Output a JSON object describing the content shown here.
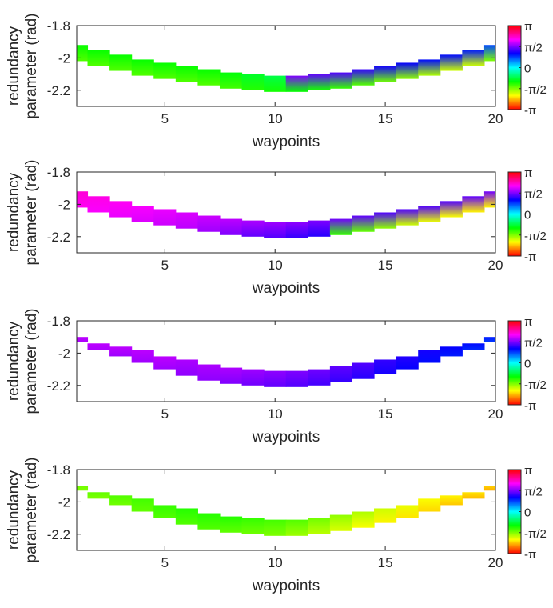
{
  "chart_data": [
    {
      "type": "heatmap",
      "title": "",
      "xlabel": "waypoints",
      "ylabel": [
        "redundancy",
        "parameter (rad)"
      ],
      "xlim": [
        1,
        20
      ],
      "ylim": [
        -2.3,
        -1.8
      ],
      "xticks": [
        5,
        10,
        15,
        20
      ],
      "xtick_labels": [
        "5",
        "10",
        "15",
        "20"
      ],
      "yticks": [
        -1.8,
        -2,
        -2.2
      ],
      "ytick_labels": [
        "-1.8",
        "-2",
        "-2.2"
      ],
      "colorbar": {
        "colormap": "hsv",
        "range": [
          "-π",
          "π"
        ],
        "tick_labels": [
          "π",
          "π/2",
          "0",
          "-π/2",
          "-π"
        ]
      },
      "bands": [
        {
          "waypoint": 1,
          "ymin": -2.02,
          "ymax": -1.92,
          "hue_start": 0.28,
          "hue_end": 0.33
        },
        {
          "waypoint": 2,
          "ymin": -2.05,
          "ymax": -1.95,
          "hue_start": 0.28,
          "hue_end": 0.33
        },
        {
          "waypoint": 3,
          "ymin": -2.08,
          "ymax": -1.98,
          "hue_start": 0.28,
          "hue_end": 0.33
        },
        {
          "waypoint": 4,
          "ymin": -2.11,
          "ymax": -2.01,
          "hue_start": 0.28,
          "hue_end": 0.33
        },
        {
          "waypoint": 5,
          "ymin": -2.13,
          "ymax": -2.03,
          "hue_start": 0.28,
          "hue_end": 0.33
        },
        {
          "waypoint": 6,
          "ymin": -2.15,
          "ymax": -2.05,
          "hue_start": 0.28,
          "hue_end": 0.33
        },
        {
          "waypoint": 7,
          "ymin": -2.17,
          "ymax": -2.07,
          "hue_start": 0.28,
          "hue_end": 0.33
        },
        {
          "waypoint": 8,
          "ymin": -2.19,
          "ymax": -2.09,
          "hue_start": 0.29,
          "hue_end": 0.34
        },
        {
          "waypoint": 9,
          "ymin": -2.2,
          "ymax": -2.1,
          "hue_start": 0.31,
          "hue_end": 0.36
        },
        {
          "waypoint": 10,
          "ymin": -2.21,
          "ymax": -2.11,
          "hue_start": 0.32,
          "hue_end": 0.38
        },
        {
          "waypoint": 11,
          "ymin": -2.21,
          "ymax": -2.11,
          "hue_start": 0.33,
          "hue_end": 0.75
        },
        {
          "waypoint": 12,
          "ymin": -2.2,
          "ymax": -2.1,
          "hue_start": 0.32,
          "hue_end": 0.73
        },
        {
          "waypoint": 13,
          "ymin": -2.19,
          "ymax": -2.09,
          "hue_start": 0.3,
          "hue_end": 0.72
        },
        {
          "waypoint": 14,
          "ymin": -2.17,
          "ymax": -2.07,
          "hue_start": 0.28,
          "hue_end": 0.7
        },
        {
          "waypoint": 15,
          "ymin": -2.15,
          "ymax": -2.05,
          "hue_start": 0.26,
          "hue_end": 0.68
        },
        {
          "waypoint": 16,
          "ymin": -2.13,
          "ymax": -2.03,
          "hue_start": 0.24,
          "hue_end": 0.67
        },
        {
          "waypoint": 17,
          "ymin": -2.11,
          "ymax": -2.01,
          "hue_start": 0.22,
          "hue_end": 0.66
        },
        {
          "waypoint": 18,
          "ymin": -2.08,
          "ymax": -1.98,
          "hue_start": 0.2,
          "hue_end": 0.66
        },
        {
          "waypoint": 19,
          "ymin": -2.05,
          "ymax": -1.95,
          "hue_start": 0.2,
          "hue_end": 0.65
        },
        {
          "waypoint": 20,
          "ymin": -2.02,
          "ymax": -1.92,
          "hue_start": 0.25,
          "hue_end": 0.62
        }
      ]
    },
    {
      "type": "heatmap",
      "title": "",
      "xlabel": "waypoints",
      "ylabel": [
        "redundancy",
        "parameter (rad)"
      ],
      "xlim": [
        1,
        20
      ],
      "ylim": [
        -2.3,
        -1.8
      ],
      "xticks": [
        5,
        10,
        15,
        20
      ],
      "xtick_labels": [
        "5",
        "10",
        "15",
        "20"
      ],
      "yticks": [
        -1.8,
        -2,
        -2.2
      ],
      "ytick_labels": [
        "-1.8",
        "-2",
        "-2.2"
      ],
      "colorbar": {
        "colormap": "hsv",
        "range": [
          "-π",
          "π"
        ],
        "tick_labels": [
          "π",
          "π/2",
          "0",
          "-π/2",
          "-π"
        ]
      },
      "bands": [
        {
          "waypoint": 1,
          "ymin": -2.02,
          "ymax": -1.92,
          "hue_start": 0.84,
          "hue_end": 0.86
        },
        {
          "waypoint": 2,
          "ymin": -2.05,
          "ymax": -1.95,
          "hue_start": 0.83,
          "hue_end": 0.85
        },
        {
          "waypoint": 3,
          "ymin": -2.08,
          "ymax": -1.98,
          "hue_start": 0.82,
          "hue_end": 0.84
        },
        {
          "waypoint": 4,
          "ymin": -2.11,
          "ymax": -2.01,
          "hue_start": 0.81,
          "hue_end": 0.83
        },
        {
          "waypoint": 5,
          "ymin": -2.13,
          "ymax": -2.03,
          "hue_start": 0.8,
          "hue_end": 0.82
        },
        {
          "waypoint": 6,
          "ymin": -2.15,
          "ymax": -2.05,
          "hue_start": 0.79,
          "hue_end": 0.81
        },
        {
          "waypoint": 7,
          "ymin": -2.17,
          "ymax": -2.07,
          "hue_start": 0.77,
          "hue_end": 0.8
        },
        {
          "waypoint": 8,
          "ymin": -2.19,
          "ymax": -2.09,
          "hue_start": 0.75,
          "hue_end": 0.79
        },
        {
          "waypoint": 9,
          "ymin": -2.2,
          "ymax": -2.1,
          "hue_start": 0.73,
          "hue_end": 0.78
        },
        {
          "waypoint": 10,
          "ymin": -2.21,
          "ymax": -2.11,
          "hue_start": 0.72,
          "hue_end": 0.77
        },
        {
          "waypoint": 11,
          "ymin": -2.21,
          "ymax": -2.11,
          "hue_start": 0.7,
          "hue_end": 0.76
        },
        {
          "waypoint": 12,
          "ymin": -2.2,
          "ymax": -2.1,
          "hue_start": 0.69,
          "hue_end": 0.75
        },
        {
          "waypoint": 13,
          "ymin": -2.19,
          "ymax": -2.09,
          "hue_start": 0.3,
          "hue_end": 0.74
        },
        {
          "waypoint": 14,
          "ymin": -2.17,
          "ymax": -2.07,
          "hue_start": 0.27,
          "hue_end": 0.73
        },
        {
          "waypoint": 15,
          "ymin": -2.15,
          "ymax": -2.05,
          "hue_start": 0.24,
          "hue_end": 0.72
        },
        {
          "waypoint": 16,
          "ymin": -2.13,
          "ymax": -2.03,
          "hue_start": 0.2,
          "hue_end": 0.72
        },
        {
          "waypoint": 17,
          "ymin": -2.11,
          "ymax": -2.01,
          "hue_start": 0.18,
          "hue_end": 0.72
        },
        {
          "waypoint": 18,
          "ymin": -2.08,
          "ymax": -1.98,
          "hue_start": 0.17,
          "hue_end": 0.72
        },
        {
          "waypoint": 19,
          "ymin": -2.05,
          "ymax": -1.95,
          "hue_start": 0.16,
          "hue_end": 0.73
        },
        {
          "waypoint": 20,
          "ymin": -2.02,
          "ymax": -1.92,
          "hue_start": 0.16,
          "hue_end": 0.74
        }
      ]
    },
    {
      "type": "heatmap",
      "title": "",
      "xlabel": "waypoints",
      "ylabel": [
        "redundancy",
        "parameter (rad)"
      ],
      "xlim": [
        1,
        20
      ],
      "ylim": [
        -2.3,
        -1.8
      ],
      "xticks": [
        5,
        10,
        15,
        20
      ],
      "xtick_labels": [
        "5",
        "10",
        "15",
        "20"
      ],
      "yticks": [
        -1.8,
        -2,
        -2.2
      ],
      "ytick_labels": [
        "-1.8",
        "-2",
        "-2.2"
      ],
      "colorbar": {
        "colormap": "hsv",
        "range": [
          "-π",
          "π"
        ],
        "tick_labels": [
          "π",
          "π/2",
          "0",
          "-π/2",
          "-π"
        ]
      },
      "bands": [
        {
          "waypoint": 1,
          "ymin": -1.93,
          "ymax": -1.9,
          "hue_start": 0.78,
          "hue_end": 0.79
        },
        {
          "waypoint": 2,
          "ymin": -1.98,
          "ymax": -1.94,
          "hue_start": 0.78,
          "hue_end": 0.79
        },
        {
          "waypoint": 3,
          "ymin": -2.02,
          "ymax": -1.96,
          "hue_start": 0.77,
          "hue_end": 0.79
        },
        {
          "waypoint": 4,
          "ymin": -2.06,
          "ymax": -1.98,
          "hue_start": 0.77,
          "hue_end": 0.79
        },
        {
          "waypoint": 5,
          "ymin": -2.1,
          "ymax": -2.02,
          "hue_start": 0.77,
          "hue_end": 0.79
        },
        {
          "waypoint": 6,
          "ymin": -2.14,
          "ymax": -2.04,
          "hue_start": 0.76,
          "hue_end": 0.78
        },
        {
          "waypoint": 7,
          "ymin": -2.17,
          "ymax": -2.07,
          "hue_start": 0.76,
          "hue_end": 0.78
        },
        {
          "waypoint": 8,
          "ymin": -2.19,
          "ymax": -2.09,
          "hue_start": 0.75,
          "hue_end": 0.78
        },
        {
          "waypoint": 9,
          "ymin": -2.2,
          "ymax": -2.1,
          "hue_start": 0.74,
          "hue_end": 0.77
        },
        {
          "waypoint": 10,
          "ymin": -2.21,
          "ymax": -2.11,
          "hue_start": 0.73,
          "hue_end": 0.76
        },
        {
          "waypoint": 11,
          "ymin": -2.21,
          "ymax": -2.11,
          "hue_start": 0.72,
          "hue_end": 0.75
        },
        {
          "waypoint": 12,
          "ymin": -2.2,
          "ymax": -2.1,
          "hue_start": 0.71,
          "hue_end": 0.74
        },
        {
          "waypoint": 13,
          "ymin": -2.18,
          "ymax": -2.08,
          "hue_start": 0.7,
          "hue_end": 0.73
        },
        {
          "waypoint": 14,
          "ymin": -2.16,
          "ymax": -2.06,
          "hue_start": 0.69,
          "hue_end": 0.72
        },
        {
          "waypoint": 15,
          "ymin": -2.13,
          "ymax": -2.04,
          "hue_start": 0.68,
          "hue_end": 0.7
        },
        {
          "waypoint": 16,
          "ymin": -2.1,
          "ymax": -2.02,
          "hue_start": 0.67,
          "hue_end": 0.69
        },
        {
          "waypoint": 17,
          "ymin": -2.06,
          "ymax": -1.98,
          "hue_start": 0.66,
          "hue_end": 0.68
        },
        {
          "waypoint": 18,
          "ymin": -2.02,
          "ymax": -1.96,
          "hue_start": 0.65,
          "hue_end": 0.67
        },
        {
          "waypoint": 19,
          "ymin": -1.98,
          "ymax": -1.94,
          "hue_start": 0.64,
          "hue_end": 0.66
        },
        {
          "waypoint": 20,
          "ymin": -1.93,
          "ymax": -1.9,
          "hue_start": 0.63,
          "hue_end": 0.65
        }
      ]
    },
    {
      "type": "heatmap",
      "title": "",
      "xlabel": "waypoints",
      "ylabel": [
        "redundancy",
        "parameter (rad)"
      ],
      "xlim": [
        1,
        20
      ],
      "ylim": [
        -2.3,
        -1.8
      ],
      "xticks": [
        5,
        10,
        15,
        20
      ],
      "xtick_labels": [
        "5",
        "10",
        "15",
        "20"
      ],
      "yticks": [
        -1.8,
        -2,
        -2.2
      ],
      "ytick_labels": [
        "-1.8",
        "-2",
        "-2.2"
      ],
      "colorbar": {
        "colormap": "hsv",
        "range": [
          "-π",
          "π"
        ],
        "tick_labels": [
          "π",
          "π/2",
          "0",
          "-π/2",
          "-π"
        ]
      },
      "bands": [
        {
          "waypoint": 1,
          "ymin": -1.93,
          "ymax": -1.9,
          "hue_start": 0.25,
          "hue_end": 0.26
        },
        {
          "waypoint": 2,
          "ymin": -1.98,
          "ymax": -1.94,
          "hue_start": 0.25,
          "hue_end": 0.27
        },
        {
          "waypoint": 3,
          "ymin": -2.02,
          "ymax": -1.96,
          "hue_start": 0.26,
          "hue_end": 0.28
        },
        {
          "waypoint": 4,
          "ymin": -2.06,
          "ymax": -1.98,
          "hue_start": 0.27,
          "hue_end": 0.29
        },
        {
          "waypoint": 5,
          "ymin": -2.1,
          "ymax": -2.02,
          "hue_start": 0.28,
          "hue_end": 0.3
        },
        {
          "waypoint": 6,
          "ymin": -2.14,
          "ymax": -2.04,
          "hue_start": 0.28,
          "hue_end": 0.31
        },
        {
          "waypoint": 7,
          "ymin": -2.17,
          "ymax": -2.07,
          "hue_start": 0.28,
          "hue_end": 0.31
        },
        {
          "waypoint": 8,
          "ymin": -2.19,
          "ymax": -2.09,
          "hue_start": 0.27,
          "hue_end": 0.31
        },
        {
          "waypoint": 9,
          "ymin": -2.2,
          "ymax": -2.1,
          "hue_start": 0.26,
          "hue_end": 0.3
        },
        {
          "waypoint": 10,
          "ymin": -2.21,
          "ymax": -2.11,
          "hue_start": 0.25,
          "hue_end": 0.29
        },
        {
          "waypoint": 11,
          "ymin": -2.21,
          "ymax": -2.11,
          "hue_start": 0.23,
          "hue_end": 0.28
        },
        {
          "waypoint": 12,
          "ymin": -2.2,
          "ymax": -2.1,
          "hue_start": 0.21,
          "hue_end": 0.26
        },
        {
          "waypoint": 13,
          "ymin": -2.18,
          "ymax": -2.08,
          "hue_start": 0.19,
          "hue_end": 0.24
        },
        {
          "waypoint": 14,
          "ymin": -2.16,
          "ymax": -2.06,
          "hue_start": 0.17,
          "hue_end": 0.22
        },
        {
          "waypoint": 15,
          "ymin": -2.13,
          "ymax": -2.04,
          "hue_start": 0.16,
          "hue_end": 0.2
        },
        {
          "waypoint": 16,
          "ymin": -2.1,
          "ymax": -2.02,
          "hue_start": 0.15,
          "hue_end": 0.18
        },
        {
          "waypoint": 17,
          "ymin": -2.06,
          "ymax": -1.98,
          "hue_start": 0.14,
          "hue_end": 0.17
        },
        {
          "waypoint": 18,
          "ymin": -2.02,
          "ymax": -1.96,
          "hue_start": 0.13,
          "hue_end": 0.16
        },
        {
          "waypoint": 19,
          "ymin": -1.98,
          "ymax": -1.94,
          "hue_start": 0.12,
          "hue_end": 0.15
        },
        {
          "waypoint": 20,
          "ymin": -1.93,
          "ymax": -1.9,
          "hue_start": 0.11,
          "hue_end": 0.14
        }
      ]
    }
  ]
}
